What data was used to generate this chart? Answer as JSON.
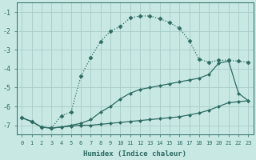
{
  "xlabel": "Humidex (Indice chaleur)",
  "xlim": [
    -0.5,
    23.5
  ],
  "ylim": [
    -7.5,
    -0.5
  ],
  "yticks": [
    -7,
    -6,
    -5,
    -4,
    -3,
    -2,
    -1
  ],
  "xticks": [
    0,
    1,
    2,
    3,
    4,
    5,
    6,
    7,
    8,
    9,
    10,
    11,
    12,
    13,
    14,
    15,
    16,
    17,
    18,
    19,
    20,
    21,
    22,
    23
  ],
  "background_color": "#c8e8e4",
  "grid_color": "#a8ccc8",
  "line_color": "#2d6b62",
  "series": [
    {
      "x": [
        0,
        1,
        2,
        3,
        4,
        5,
        6,
        7,
        8,
        9,
        10,
        11,
        12,
        13,
        14,
        15,
        16,
        17,
        18,
        19,
        20,
        21,
        22,
        23
      ],
      "y": [
        -6.6,
        -6.8,
        -7.1,
        -7.15,
        -7.1,
        -7.05,
        -7.0,
        -7.0,
        -6.95,
        -6.9,
        -6.85,
        -6.8,
        -6.75,
        -6.7,
        -6.65,
        -6.6,
        -6.55,
        -6.45,
        -6.35,
        -6.2,
        -6.0,
        -5.8,
        -5.75,
        -5.7
      ],
      "marker": "D",
      "markersize": 2.0,
      "linestyle": "-",
      "linewidth": 0.9,
      "dotted": false
    },
    {
      "x": [
        0,
        1,
        2,
        3,
        4,
        5,
        6,
        7,
        8,
        9,
        10,
        11,
        12,
        13,
        14,
        15,
        16,
        17,
        18,
        19,
        20,
        21,
        22,
        23
      ],
      "y": [
        -6.6,
        -6.8,
        -7.1,
        -7.15,
        -7.1,
        -7.0,
        -6.9,
        -6.7,
        -6.3,
        -6.0,
        -5.6,
        -5.3,
        -5.1,
        -5.0,
        -4.9,
        -4.8,
        -4.7,
        -4.6,
        -4.5,
        -4.3,
        -3.7,
        -3.6,
        -5.3,
        -5.7
      ],
      "marker": "D",
      "markersize": 2.0,
      "linestyle": "-",
      "linewidth": 0.9,
      "dotted": false
    },
    {
      "x": [
        0,
        1,
        2,
        3,
        4,
        5,
        6,
        7,
        8,
        9,
        10,
        11,
        12,
        13,
        14,
        15,
        16,
        17,
        18,
        19,
        20,
        21,
        22,
        23
      ],
      "y": [
        -6.6,
        -6.8,
        -7.1,
        -7.15,
        -6.5,
        -6.3,
        -4.4,
        -3.4,
        -2.55,
        -2.0,
        -1.75,
        -1.3,
        -1.2,
        -1.2,
        -1.35,
        -1.55,
        -1.85,
        -2.5,
        -3.5,
        -3.65,
        -3.55,
        -3.55,
        -3.6,
        -3.65
      ],
      "marker": "D",
      "markersize": 2.5,
      "linestyle": "--",
      "linewidth": 0.9,
      "dotted": true
    }
  ]
}
